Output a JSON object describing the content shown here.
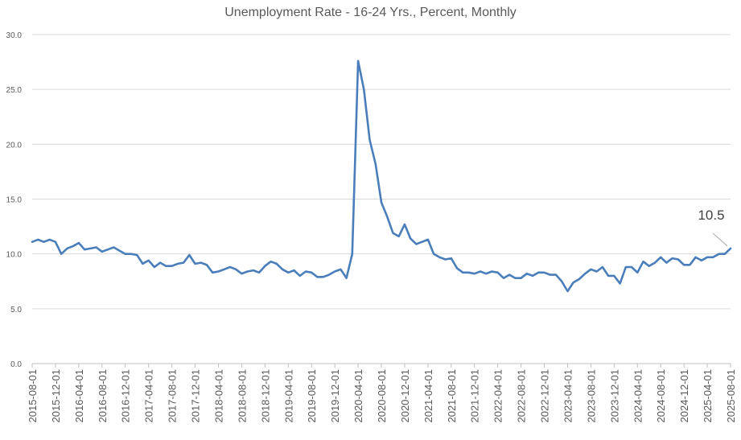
{
  "chart_data": {
    "type": "line",
    "title": "Unemployment Rate - 16-24 Yrs., Percent, Monthly",
    "xlabel": "",
    "ylabel": "",
    "ylim": [
      0,
      30
    ],
    "yticks": [
      "0.0",
      "5.0",
      "10.0",
      "15.0",
      "20.0",
      "25.0",
      "30.0"
    ],
    "xticks": [
      "2015-08-01",
      "2015-12-01",
      "2016-04-01",
      "2016-08-01",
      "2016-12-01",
      "2017-04-01",
      "2017-08-01",
      "2017-12-01",
      "2018-04-01",
      "2018-08-01",
      "2018-12-01",
      "2019-04-01",
      "2019-08-01",
      "2019-12-01",
      "2020-04-01",
      "2020-08-01",
      "2020-12-01",
      "2021-04-01",
      "2021-08-01",
      "2021-12-01",
      "2022-04-01",
      "2022-08-01",
      "2022-12-01",
      "2023-04-01",
      "2023-08-01",
      "2023-12-01",
      "2024-04-01",
      "2024-08-01",
      "2024-12-01",
      "2025-04-01",
      "2025-08-01"
    ],
    "grid": true,
    "legend": "none",
    "annotation": "10.5",
    "color": "#4a7ebb",
    "x": [
      "2015-08-01",
      "2015-09-01",
      "2015-10-01",
      "2015-11-01",
      "2015-12-01",
      "2016-01-01",
      "2016-02-01",
      "2016-03-01",
      "2016-04-01",
      "2016-05-01",
      "2016-06-01",
      "2016-07-01",
      "2016-08-01",
      "2016-09-01",
      "2016-10-01",
      "2016-11-01",
      "2016-12-01",
      "2017-01-01",
      "2017-02-01",
      "2017-03-01",
      "2017-04-01",
      "2017-05-01",
      "2017-06-01",
      "2017-07-01",
      "2017-08-01",
      "2017-09-01",
      "2017-10-01",
      "2017-11-01",
      "2017-12-01",
      "2018-01-01",
      "2018-02-01",
      "2018-03-01",
      "2018-04-01",
      "2018-05-01",
      "2018-06-01",
      "2018-07-01",
      "2018-08-01",
      "2018-09-01",
      "2018-10-01",
      "2018-11-01",
      "2018-12-01",
      "2019-01-01",
      "2019-02-01",
      "2019-03-01",
      "2019-04-01",
      "2019-05-01",
      "2019-06-01",
      "2019-07-01",
      "2019-08-01",
      "2019-09-01",
      "2019-10-01",
      "2019-11-01",
      "2019-12-01",
      "2020-01-01",
      "2020-02-01",
      "2020-03-01",
      "2020-04-01",
      "2020-05-01",
      "2020-06-01",
      "2020-07-01",
      "2020-08-01",
      "2020-09-01",
      "2020-10-01",
      "2020-11-01",
      "2020-12-01",
      "2021-01-01",
      "2021-02-01",
      "2021-03-01",
      "2021-04-01",
      "2021-05-01",
      "2021-06-01",
      "2021-07-01",
      "2021-08-01",
      "2021-09-01",
      "2021-10-01",
      "2021-11-01",
      "2021-12-01",
      "2022-01-01",
      "2022-02-01",
      "2022-03-01",
      "2022-04-01",
      "2022-05-01",
      "2022-06-01",
      "2022-07-01",
      "2022-08-01",
      "2022-09-01",
      "2022-10-01",
      "2022-11-01",
      "2022-12-01",
      "2023-01-01",
      "2023-02-01",
      "2023-03-01",
      "2023-04-01",
      "2023-05-01",
      "2023-06-01",
      "2023-07-01",
      "2023-08-01",
      "2023-09-01",
      "2023-10-01",
      "2023-11-01",
      "2023-12-01",
      "2024-01-01",
      "2024-02-01",
      "2024-03-01",
      "2024-04-01",
      "2024-05-01",
      "2024-06-01",
      "2024-07-01",
      "2024-08-01",
      "2024-09-01",
      "2024-10-01",
      "2024-11-01",
      "2024-12-01",
      "2025-01-01",
      "2025-02-01",
      "2025-03-01",
      "2025-04-01",
      "2025-05-01",
      "2025-06-01",
      "2025-07-01",
      "2025-08-01"
    ],
    "values": [
      11.1,
      11.3,
      11.1,
      11.3,
      11.1,
      10.0,
      10.5,
      10.7,
      11.0,
      10.4,
      10.5,
      10.6,
      10.2,
      10.4,
      10.6,
      10.3,
      10.0,
      10.0,
      9.9,
      9.1,
      9.4,
      8.8,
      9.2,
      8.9,
      8.9,
      9.1,
      9.2,
      9.9,
      9.1,
      9.2,
      9.0,
      8.3,
      8.4,
      8.6,
      8.8,
      8.6,
      8.2,
      8.4,
      8.5,
      8.3,
      8.9,
      9.3,
      9.1,
      8.6,
      8.3,
      8.5,
      8.0,
      8.4,
      8.3,
      7.9,
      7.9,
      8.1,
      8.4,
      8.6,
      7.8,
      10.0,
      27.6,
      25.0,
      20.4,
      18.2,
      14.7,
      13.4,
      11.9,
      11.6,
      12.7,
      11.4,
      10.9,
      11.1,
      11.3,
      10.0,
      9.7,
      9.5,
      9.6,
      8.7,
      8.3,
      8.3,
      8.2,
      8.4,
      8.2,
      8.4,
      8.3,
      7.8,
      8.1,
      7.8,
      7.8,
      8.2,
      8.0,
      8.3,
      8.3,
      8.1,
      8.1,
      7.5,
      6.6,
      7.4,
      7.7,
      8.2,
      8.6,
      8.4,
      8.8,
      8.0,
      8.0,
      7.3,
      8.8,
      8.8,
      8.3,
      9.3,
      8.9,
      9.2,
      9.7,
      9.2,
      9.6,
      9.5,
      9.0,
      9.0,
      9.7,
      9.4,
      9.7,
      9.7,
      10.0,
      10.0,
      10.5
    ]
  }
}
